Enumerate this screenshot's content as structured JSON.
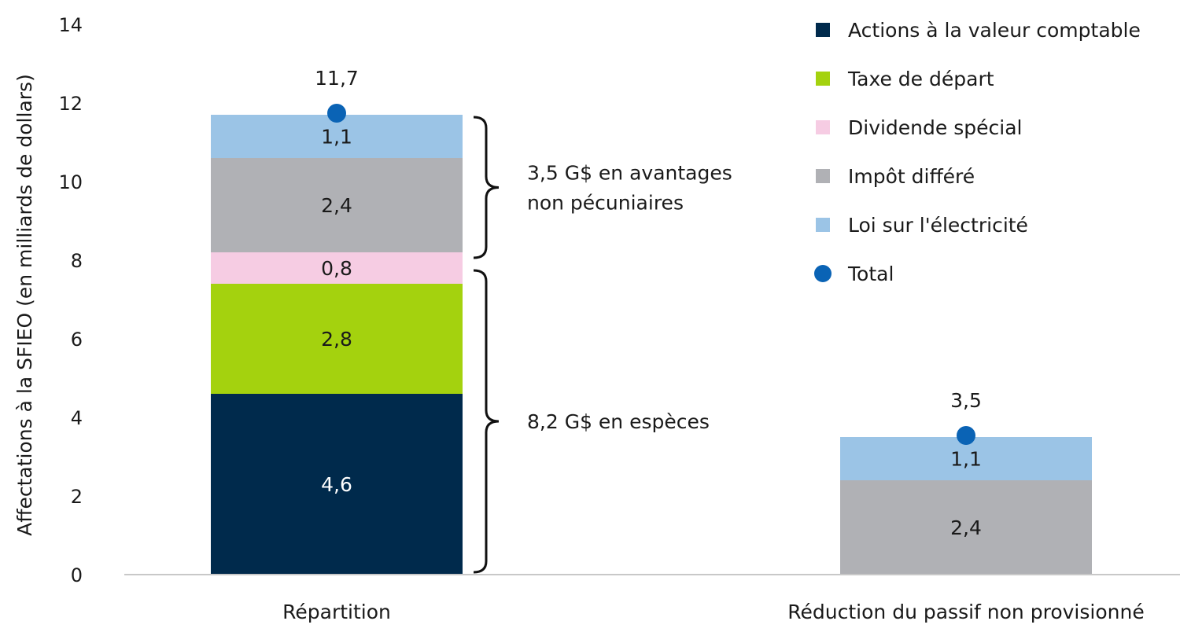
{
  "chart_data": {
    "type": "bar",
    "stacked": true,
    "categories": [
      "Répartition",
      "Réduction du passif non provisionné"
    ],
    "ylabel": "Affectations à la SFIEO (en milliards de dollars)",
    "ylim": [
      0,
      14
    ],
    "yticks": [
      0,
      2,
      4,
      6,
      8,
      10,
      12,
      14
    ],
    "ytick_labels": [
      "0",
      "2",
      "4",
      "6",
      "8",
      "10",
      "12",
      "14"
    ],
    "grid": false,
    "legend_position": "top-right",
    "series": [
      {
        "name": "Actions à la valeur comptable",
        "color": "#002a4c",
        "label_color": "#ffffff",
        "values": [
          4.6,
          0
        ],
        "labels": [
          "4,6",
          ""
        ]
      },
      {
        "name": "Taxe de départ",
        "color": "#a4d20e",
        "label_color": "#1a1a1a",
        "values": [
          2.8,
          0
        ],
        "labels": [
          "2,8",
          ""
        ]
      },
      {
        "name": "Dividende spécial",
        "color": "#f6cce3",
        "label_color": "#1a1a1a",
        "values": [
          0.8,
          0
        ],
        "labels": [
          "0,8",
          ""
        ]
      },
      {
        "name": "Impôt différé",
        "color": "#b0b1b5",
        "label_color": "#1a1a1a",
        "values": [
          2.4,
          2.4
        ],
        "labels": [
          "2,4",
          "2,4"
        ]
      },
      {
        "name": "Loi sur l'électricité",
        "color": "#9bc4e6",
        "label_color": "#1a1a1a",
        "values": [
          1.1,
          1.1
        ],
        "labels": [
          "1,1",
          "1,1"
        ]
      }
    ],
    "total": {
      "name": "Total",
      "color": "#0a63b5",
      "values": [
        11.7,
        3.5
      ],
      "labels": [
        "11,7",
        "3,5"
      ]
    },
    "annotations": [
      {
        "text_lines": [
          "3,5 G$ en avantages",
          "non pécuniaires"
        ],
        "category": 0,
        "from": 8.0,
        "to": 11.7
      },
      {
        "text_lines": [
          "8,2 G$ en espèces"
        ],
        "category": 0,
        "from": 0,
        "to": 7.8
      }
    ]
  }
}
